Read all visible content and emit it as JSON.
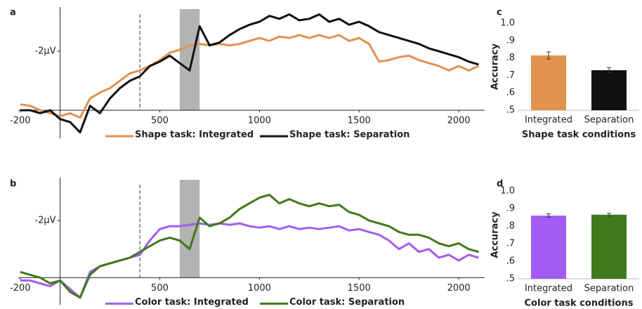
{
  "chart_data": [
    {
      "type": "line",
      "panel_label": "a",
      "legend": "bottom",
      "x": [
        -200,
        -150,
        -100,
        -50,
        0,
        50,
        100,
        150,
        200,
        250,
        300,
        350,
        400,
        450,
        500,
        550,
        600,
        650,
        700,
        750,
        800,
        850,
        900,
        950,
        1000,
        1050,
        1100,
        1150,
        1200,
        1250,
        1300,
        1350,
        1400,
        1450,
        1500,
        1550,
        1600,
        1650,
        1700,
        1750,
        1800,
        1850,
        1900,
        1950,
        2000,
        2050,
        2100
      ],
      "xlim": [
        -210,
        2130
      ],
      "xticks": [
        -200,
        500,
        1000,
        1500,
        2000
      ],
      "ylim": [
        1,
        -3.5
      ],
      "yticks": [
        {
          "value": -2,
          "label": "-2μV"
        }
      ],
      "vline": 400,
      "shade": [
        600,
        700
      ],
      "shade_color": "#b3b3b3",
      "series": [
        {
          "name": "Shape task: Integrated",
          "color": "#e0924f",
          "values": [
            -0.2,
            -0.15,
            0,
            0.1,
            0.2,
            0.1,
            0.25,
            -0.4,
            -0.6,
            -0.75,
            -1.0,
            -1.25,
            -1.35,
            -1.5,
            -1.7,
            -1.95,
            -2.05,
            -2.2,
            -2.25,
            -2.2,
            -2.25,
            -2.2,
            -2.25,
            -2.35,
            -2.45,
            -2.35,
            -2.5,
            -2.45,
            -2.55,
            -2.45,
            -2.55,
            -2.45,
            -2.55,
            -2.35,
            -2.45,
            -2.25,
            -1.65,
            -1.7,
            -1.8,
            -1.85,
            -1.7,
            -1.6,
            -1.5,
            -1.35,
            -1.5,
            -1.35,
            -1.5
          ]
        },
        {
          "name": "Shape task: Separation",
          "color": "#111111",
          "values": [
            0,
            0,
            0.1,
            0,
            0.3,
            0.4,
            0.75,
            -0.15,
            0.1,
            -0.4,
            -0.75,
            -1.0,
            -1.15,
            -1.5,
            -1.65,
            -1.85,
            -1.6,
            -1.35,
            -2.85,
            -2.2,
            -2.3,
            -2.55,
            -2.75,
            -2.9,
            -3.0,
            -3.2,
            -3.1,
            -3.25,
            -3.05,
            -3.1,
            -3.25,
            -3.0,
            -3.1,
            -2.9,
            -3.0,
            -2.85,
            -2.65,
            -2.55,
            -2.45,
            -2.35,
            -2.25,
            -2.1,
            -2.0,
            -1.9,
            -1.8,
            -1.65,
            -1.55
          ]
        }
      ]
    },
    {
      "type": "line",
      "panel_label": "b",
      "legend": "bottom",
      "x": [
        -200,
        -150,
        -100,
        -50,
        0,
        50,
        100,
        150,
        200,
        250,
        300,
        350,
        400,
        450,
        500,
        550,
        600,
        650,
        700,
        750,
        800,
        850,
        900,
        950,
        1000,
        1050,
        1100,
        1150,
        1200,
        1250,
        1300,
        1350,
        1400,
        1450,
        1500,
        1550,
        1600,
        1650,
        1700,
        1750,
        1800,
        1850,
        1900,
        1950,
        2000,
        2050,
        2100
      ],
      "xlim": [
        -210,
        2130
      ],
      "xticks": [
        -200,
        500,
        1000,
        1500,
        2000
      ],
      "ylim": [
        1,
        -3.5
      ],
      "yticks": [
        {
          "value": -2,
          "label": "-2μV"
        }
      ],
      "vline": 400,
      "shade": [
        600,
        700
      ],
      "shade_color": "#b3b3b3",
      "series": [
        {
          "name": "Color task: Integrated",
          "color": "#a35cf2",
          "values": [
            0.1,
            0.1,
            0.2,
            0.3,
            0.1,
            0.4,
            0.7,
            -0.2,
            -0.4,
            -0.5,
            -0.6,
            -0.7,
            -0.8,
            -1.3,
            -1.7,
            -1.8,
            -1.8,
            -1.85,
            -1.9,
            -1.85,
            -1.9,
            -1.85,
            -1.9,
            -1.8,
            -1.75,
            -1.8,
            -1.7,
            -1.8,
            -1.7,
            -1.75,
            -1.7,
            -1.75,
            -1.8,
            -1.65,
            -1.7,
            -1.6,
            -1.5,
            -1.3,
            -1.0,
            -1.2,
            -0.9,
            -1.0,
            -0.7,
            -0.8,
            -0.6,
            -0.8,
            -0.7
          ]
        },
        {
          "name": "Color task: Separation",
          "color": "#3f7a1b",
          "values": [
            -0.2,
            -0.1,
            0,
            0.2,
            0.1,
            0.5,
            0.7,
            -0.1,
            -0.4,
            -0.5,
            -0.6,
            -0.7,
            -0.9,
            -1.1,
            -1.3,
            -1.4,
            -1.3,
            -1.0,
            -2.1,
            -1.8,
            -1.9,
            -2.1,
            -2.4,
            -2.6,
            -2.8,
            -2.9,
            -2.6,
            -2.75,
            -2.6,
            -2.5,
            -2.6,
            -2.5,
            -2.55,
            -2.3,
            -2.2,
            -2.0,
            -1.9,
            -1.8,
            -1.6,
            -1.5,
            -1.5,
            -1.4,
            -1.2,
            -1.1,
            -1.2,
            -1.0,
            -0.9
          ]
        }
      ]
    },
    {
      "type": "bar",
      "panel_label": "c",
      "y_label": "Accuracy",
      "x_label": "Shape task conditions",
      "categories": [
        "Integrated",
        "Separation"
      ],
      "values": [
        0.815,
        0.73
      ],
      "errors": [
        0.02,
        0.015
      ],
      "colors": [
        "#e0924f",
        "#111111"
      ],
      "ylim": [
        0.5,
        1.0
      ],
      "yticks": [
        {
          "value": 0.5,
          "label": ".5"
        },
        {
          "value": 0.6,
          "label": ".6"
        },
        {
          "value": 0.7,
          "label": ".7"
        },
        {
          "value": 0.8,
          "label": ".8"
        },
        {
          "value": 0.9,
          "label": ".9"
        },
        {
          "value": 1.0,
          "label": "1.0"
        }
      ]
    },
    {
      "type": "bar",
      "panel_label": "d",
      "y_label": "Accuracy",
      "x_label": "Color task conditions",
      "categories": [
        "Integrated",
        "Separation"
      ],
      "values": [
        0.86,
        0.865
      ],
      "errors": [
        0.01,
        0.008
      ],
      "colors": [
        "#a35cf2",
        "#3f7a1b"
      ],
      "ylim": [
        0.5,
        1.0
      ],
      "yticks": [
        {
          "value": 0.5,
          "label": ".5"
        },
        {
          "value": 0.6,
          "label": ".6"
        },
        {
          "value": 0.7,
          "label": ".7"
        },
        {
          "value": 0.8,
          "label": ".8"
        },
        {
          "value": 0.9,
          "label": ".9"
        },
        {
          "value": 1.0,
          "label": "1.0"
        }
      ]
    }
  ]
}
